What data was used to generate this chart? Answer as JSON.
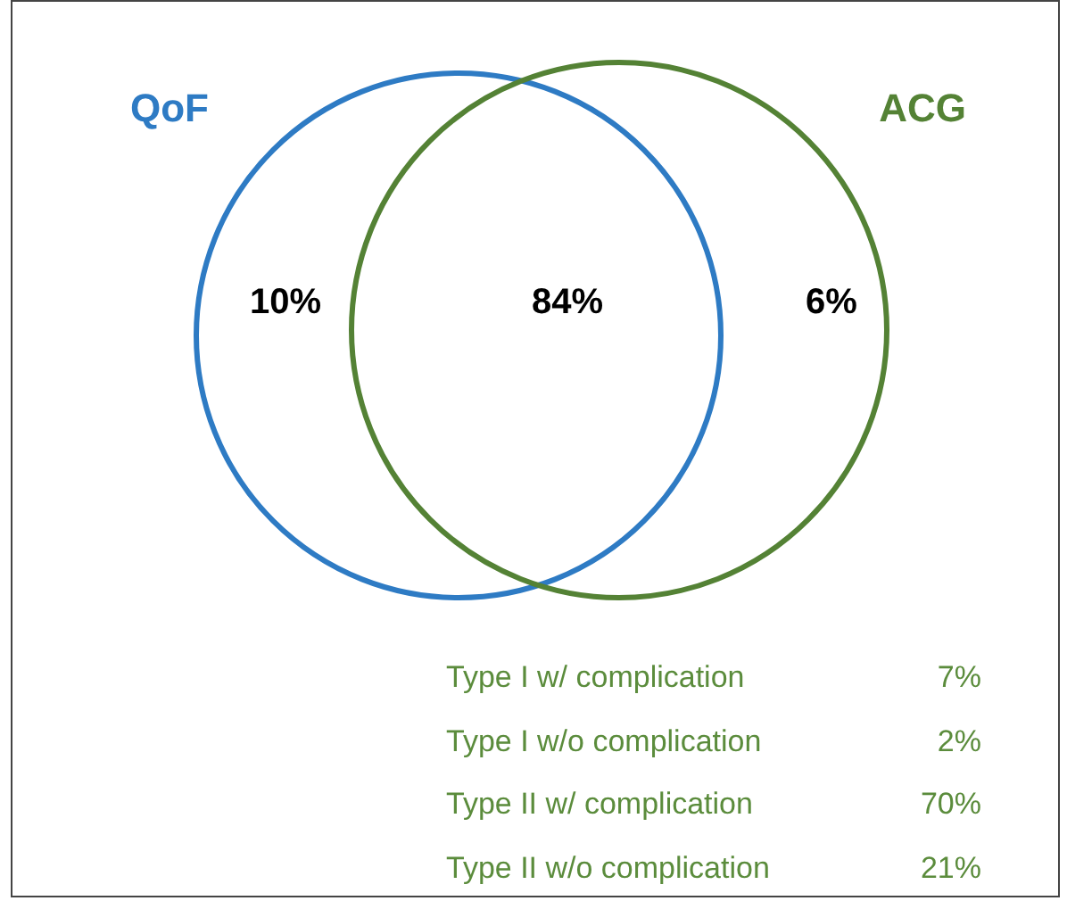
{
  "chart_data": [
    {
      "type": "other",
      "categories": [
        "QoF",
        null,
        "ACG"
      ],
      "values": [
        10,
        84,
        6
      ],
      "value_labels": [
        "10%",
        "84%",
        "6%"
      ],
      "colors": [
        "#2e7bc4",
        null,
        "#548235"
      ],
      "data_labels": true
    },
    {
      "type": "other",
      "categories": [
        "Type I w/ complication",
        "Type I w/o complication",
        "Type II w/ complication",
        "Type II w/o complication"
      ],
      "values": [
        7,
        2,
        70,
        21
      ],
      "value_labels": [
        "7%",
        "2%",
        "70%",
        "21%"
      ],
      "color": "#5b8c3c",
      "data_labels": true
    }
  ]
}
